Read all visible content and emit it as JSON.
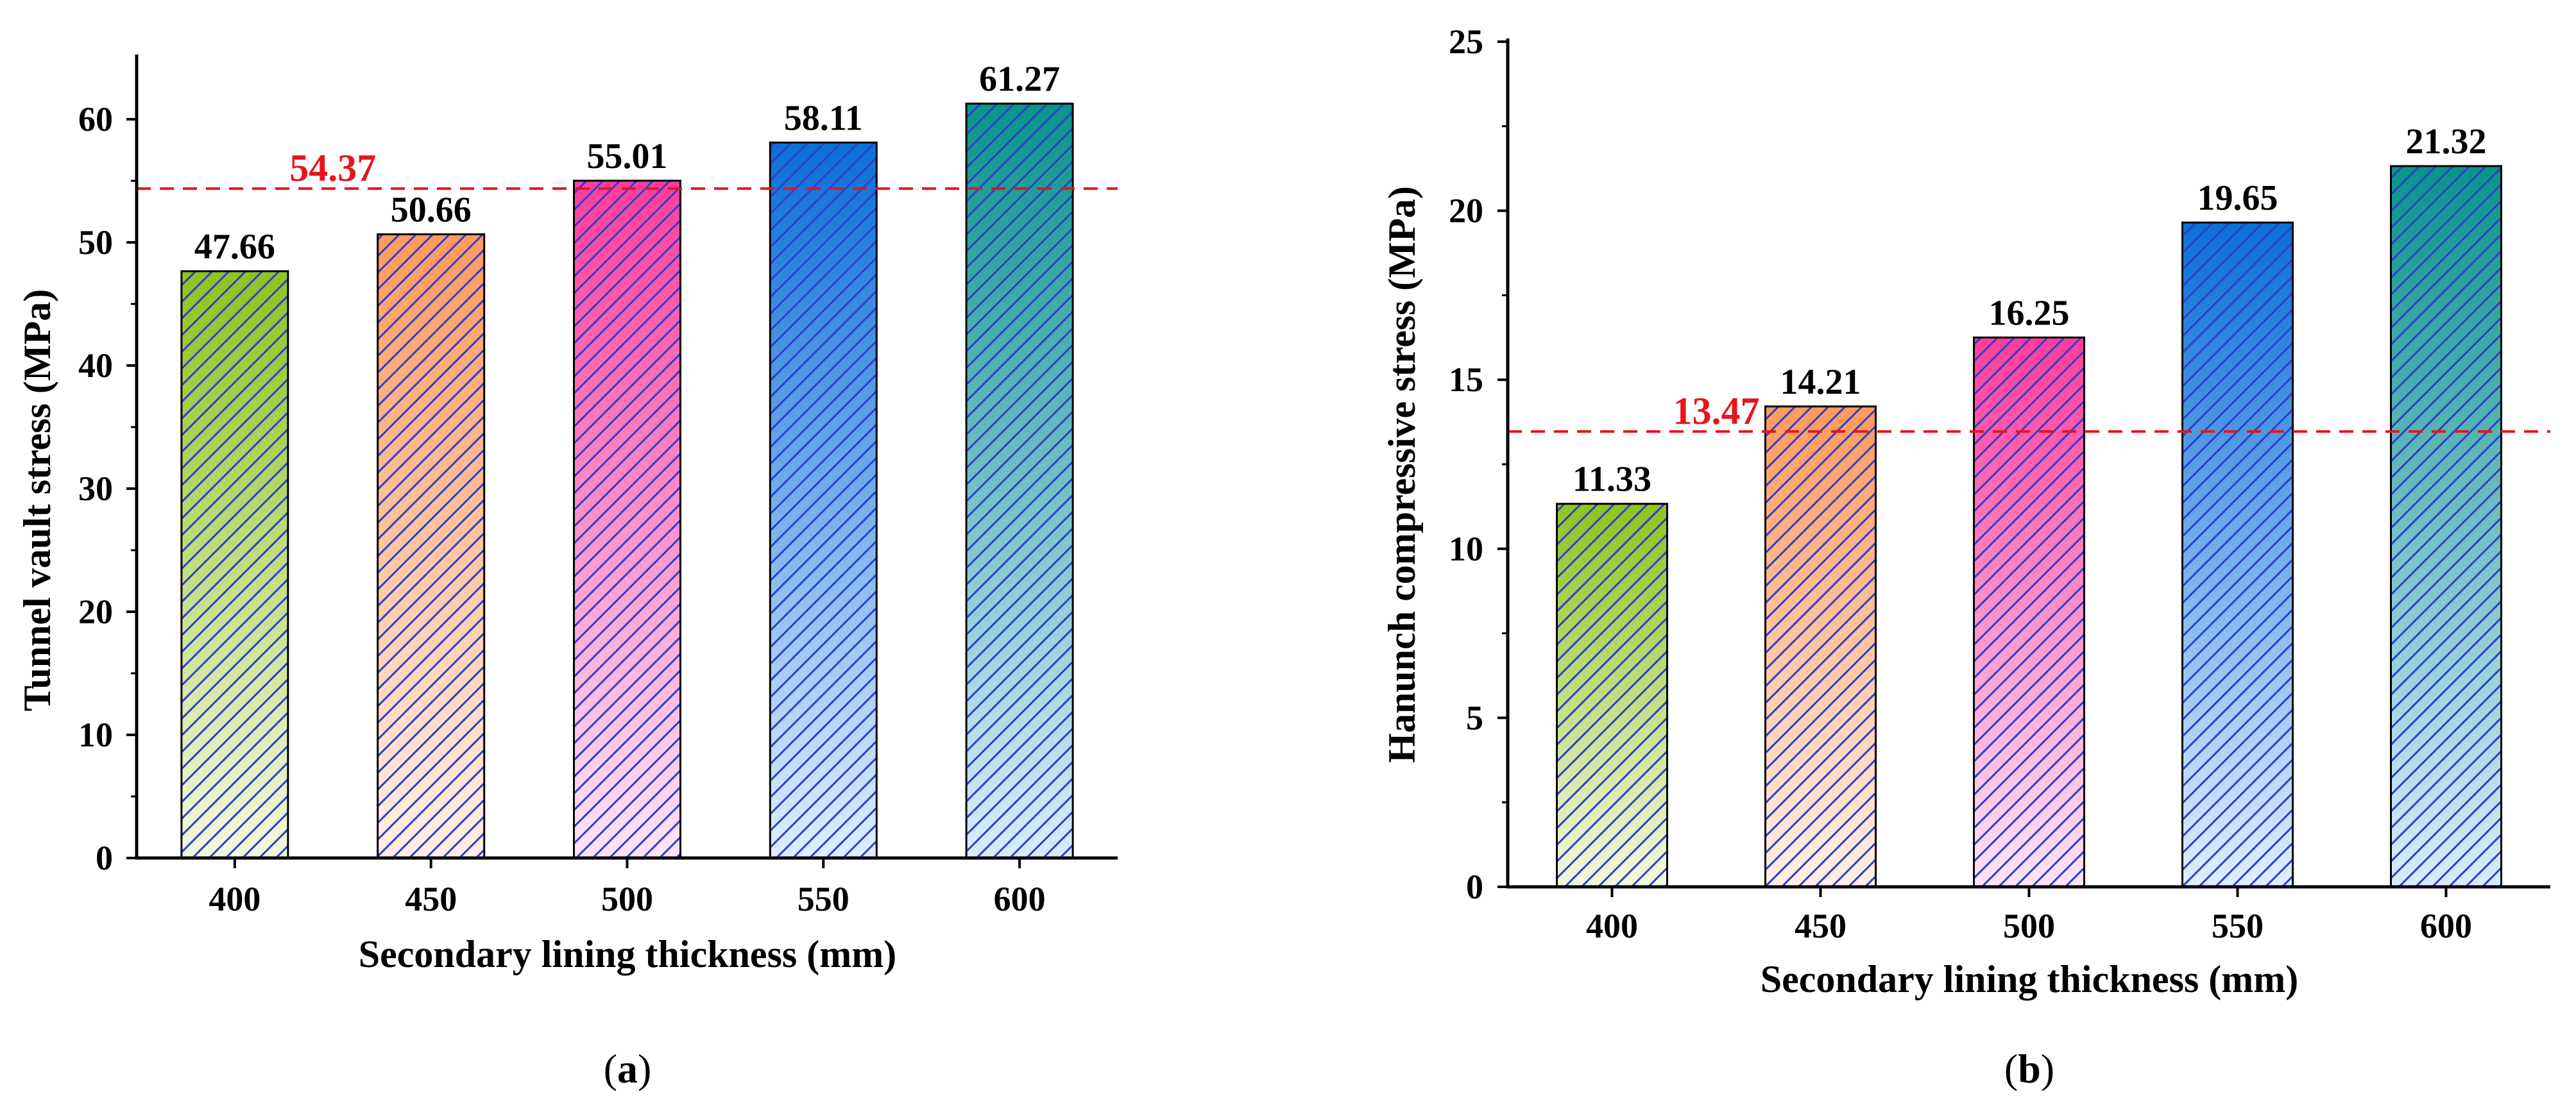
{
  "chart_data": [
    {
      "type": "bar",
      "panel_label": "a",
      "categories": [
        "400",
        "450",
        "500",
        "550",
        "600"
      ],
      "values": [
        47.66,
        50.66,
        55.01,
        58.11,
        61.27
      ],
      "value_labels": [
        "47.66",
        "50.66",
        "55.01",
        "58.11",
        "61.27"
      ],
      "xlabel": "Secondary lining thickness (mm)",
      "ylabel": "Tunnel vault stress (MPa)",
      "ylim": [
        0,
        65
      ],
      "yticks": [
        0,
        10,
        20,
        30,
        40,
        50,
        60
      ],
      "reference_line": {
        "value": 54.37,
        "label": "54.37",
        "color": "#e8141c",
        "style": "dashed"
      },
      "bar_colors": [
        {
          "top": "#8fc31f",
          "bottom": "#f2f9dc"
        },
        {
          "top": "#ff9a5c",
          "bottom": "#fff0e4"
        },
        {
          "top": "#ff3d9a",
          "bottom": "#fde4f6"
        },
        {
          "top": "#0a6fd6",
          "bottom": "#dfeeff"
        },
        {
          "top": "#0a9488",
          "bottom": "#d8ecfb"
        }
      ],
      "hatch_color": "#2d3fd0",
      "grid": false
    },
    {
      "type": "bar",
      "panel_label": "b",
      "categories": [
        "400",
        "450",
        "500",
        "550",
        "600"
      ],
      "values": [
        11.33,
        14.21,
        16.25,
        19.65,
        21.32
      ],
      "value_labels": [
        "11.33",
        "14.21",
        "16.25",
        "19.65",
        "21.32"
      ],
      "xlabel": "Secondary lining thickness (mm)",
      "ylabel": "Hanunch compressive stress (MPa)",
      "ylim": [
        0,
        25
      ],
      "yticks": [
        0,
        5,
        10,
        15,
        20,
        25
      ],
      "reference_line": {
        "value": 13.47,
        "label": "13.47",
        "color": "#e8141c",
        "style": "dashed"
      },
      "bar_colors": [
        {
          "top": "#8fc31f",
          "bottom": "#f2f9dc"
        },
        {
          "top": "#ff9a5c",
          "bottom": "#fff0e4"
        },
        {
          "top": "#ff3d9a",
          "bottom": "#fde4f6"
        },
        {
          "top": "#0a6fd6",
          "bottom": "#dfeeff"
        },
        {
          "top": "#0a9488",
          "bottom": "#d8ecfb"
        }
      ],
      "hatch_color": "#2d3fd0",
      "grid": false
    }
  ],
  "captions": {
    "a": "a",
    "b": "b"
  }
}
